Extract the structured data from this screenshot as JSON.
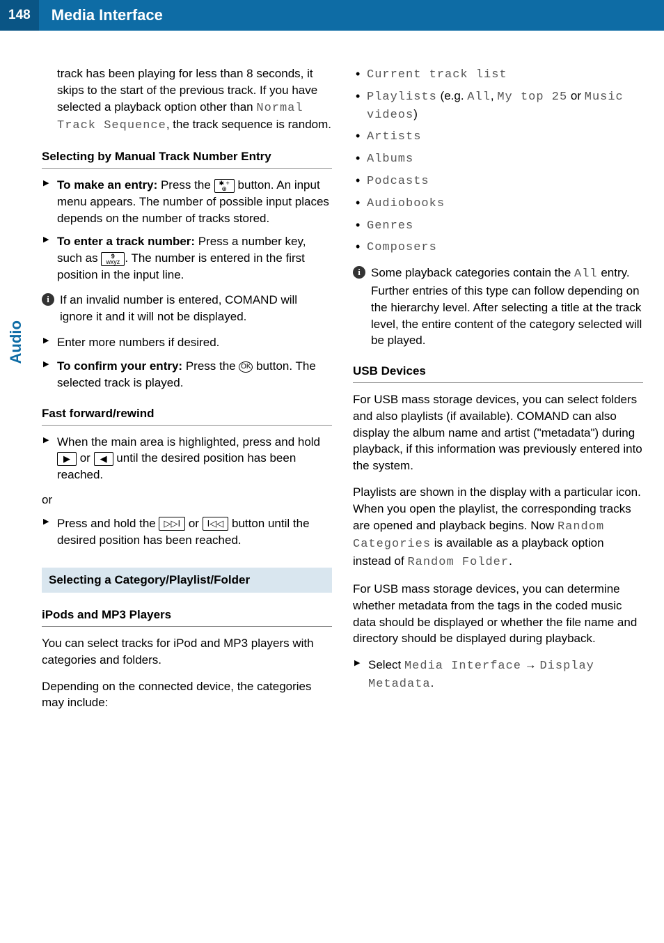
{
  "colors": {
    "header_bg": "#0e6ca5",
    "pagenum_bg": "#0a5585",
    "section_bg": "#d9e6ef",
    "accent": "#0e6ca5",
    "rule": "#888888",
    "mono_text": "#555555",
    "body_text": "#000000"
  },
  "header": {
    "page_number": "148",
    "title": "Media Interface"
  },
  "side_tab": "Audio",
  "left": {
    "intro_prefix": "track has been playing for less than 8 seconds, it skips to the start of the previous track. If you have selected a playback option other than ",
    "intro_code": "Normal Track Sequence",
    "intro_suffix": ", the track sequence is random.",
    "h_manual": "Selecting by Manual Track Number Entry",
    "make_entry_label": "To make an entry:",
    "make_entry_rest": " Press the ",
    "star_key_top": "✱ +",
    "star_key_bottom": "⊕",
    "make_entry_tail": " button. An input menu appears. The number of possible input places depends on the number of tracks stored.",
    "enter_track_label": "To enter a track number:",
    "enter_track_rest": " Press a number key, such as ",
    "nine_key_top": "9",
    "nine_key_bottom": "wxyz",
    "enter_track_tail": ". The number is entered in the first position in the input line.",
    "info1": "If an invalid number is entered, COMAND will ignore it and it will not be displayed.",
    "enter_more": "Enter more numbers if desired.",
    "confirm_label": "To confirm your entry:",
    "confirm_rest": " Press the ",
    "ok_label": "OK",
    "confirm_tail": " button. The selected track is played.",
    "h_ff": "Fast forward/rewind",
    "ff_text_a": "When the main area is highlighted, press and hold ",
    "ff_key_fwd": "▶",
    "ff_or": " or ",
    "ff_key_back": "◀",
    "ff_text_b": " until the desired position has been reached.",
    "or": "or",
    "ff2_a": "Press and hold the ",
    "ff2_fwd": "▷▷I",
    "ff2_or": " or ",
    "ff2_back": "I◁◁",
    "ff2_b": " button until the desired position has been reached.",
    "section_title": "Selecting a Category/Playlist/Folder",
    "h_ipod": "iPods and MP3 Players",
    "ipod_p1": "You can select tracks for iPod and MP3 players with categories and folders.",
    "ipod_p2": "Depending on the connected device, the categories may include:"
  },
  "right": {
    "cats": {
      "current": "Current track list",
      "playlists": "Playlists",
      "playlists_eg_prefix": " (e.g. ",
      "all": "All",
      "sep1": ", ",
      "top25": "My top 25",
      "sep_or": " or ",
      "music_videos": "Music videos",
      "close": ")",
      "artists": "Artists",
      "albums": "Albums",
      "podcasts": "Podcasts",
      "audiobooks": "Audiobooks",
      "genres": "Genres",
      "composers": "Composers"
    },
    "info2_a": "Some playback categories contain the ",
    "info2_all": "All",
    "info2_b": " entry. Further entries of this type can follow depending on the hierarchy level. After selecting a title at the track level, the entire content of the category selected will be played.",
    "h_usb": "USB Devices",
    "usb_p1": "For USB mass storage devices, you can select folders and also playlists (if available). COMAND can also display the album name and artist (\"metadata\") during playback, if this information was previously entered into the system.",
    "usb_p2_a": "Playlists are shown in the display with a particular icon. When you open the playlist, the corresponding tracks are opened and playback begins. Now ",
    "usb_rand_cat": "Random Categories",
    "usb_p2_b": " is available as a playback option instead of ",
    "usb_rand_folder": "Random Folder",
    "usb_p2_c": ".",
    "usb_p3": "For USB mass storage devices, you can determine whether metadata from the tags in the coded music data should be displayed or whether the file name and directory should be displayed during playback.",
    "select_prefix": "Select ",
    "media_interface": "Media Interface",
    "arrow": " → ",
    "display_metadata": "Display Metadata",
    "period": "."
  }
}
